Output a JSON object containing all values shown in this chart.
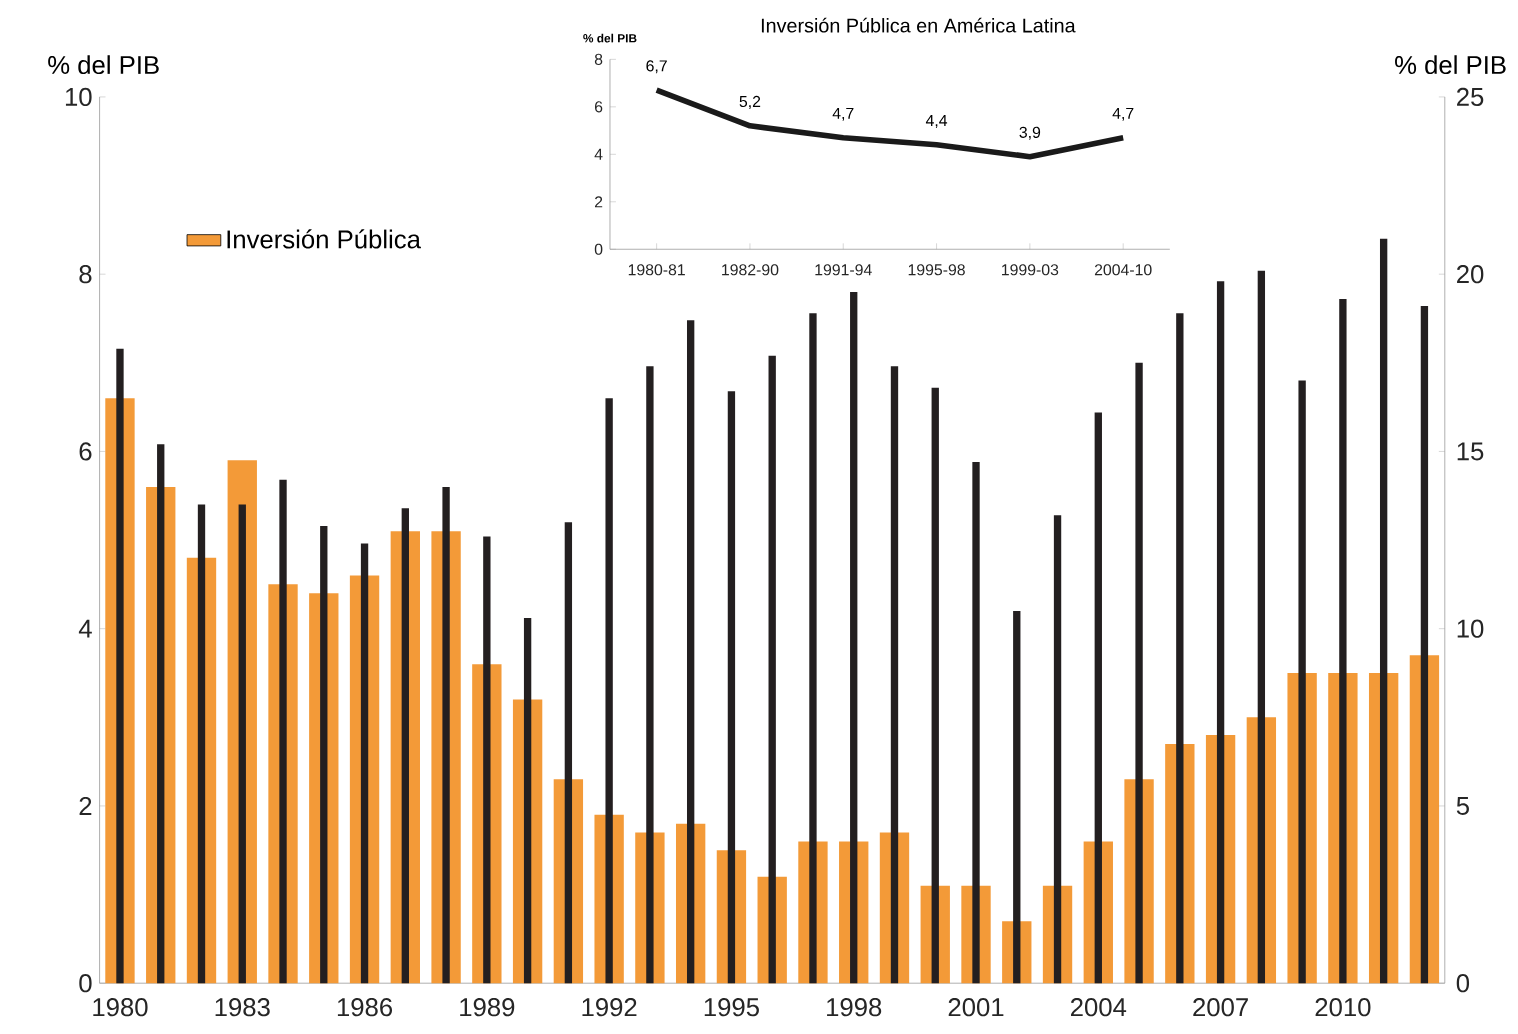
{
  "chart_data": [
    {
      "type": "bar",
      "categories": [
        "1980",
        null,
        null,
        "1983",
        null,
        null,
        "1986",
        null,
        null,
        "1989",
        null,
        null,
        "1992",
        null,
        null,
        "1995",
        null,
        null,
        "1998",
        null,
        null,
        "2001",
        null,
        null,
        "2004",
        null,
        null,
        "2007",
        null,
        null,
        "2010",
        null,
        null
      ],
      "series": [
        {
          "name": "Inversión Pública",
          "color": "#f39a38",
          "values": [
            6.6,
            5.6,
            4.8,
            5.9,
            4.5,
            4.4,
            4.6,
            5.1,
            5.1,
            3.6,
            3.2,
            2.3,
            1.9,
            1.7,
            1.8,
            1.5,
            1.2,
            1.6,
            1.6,
            1.7,
            1.1,
            1.1,
            0.7,
            1.1,
            1.6,
            2.3,
            2.7,
            2.8,
            3.0,
            3.5,
            3.5,
            3.5,
            3.7
          ]
        },
        {
          "color": "#231f20",
          "axis": "y2",
          "values": [
            17.9,
            15.2,
            13.5,
            13.5,
            14.2,
            12.9,
            12.4,
            13.4,
            14.0,
            12.6,
            10.3,
            13.0,
            16.5,
            17.4,
            18.7,
            16.7,
            17.7,
            18.9,
            19.5,
            17.4,
            16.8,
            14.7,
            10.5,
            13.2,
            16.1,
            17.5,
            18.9,
            19.8,
            20.1,
            17.0,
            19.3,
            21.0,
            19.1
          ]
        }
      ],
      "ylabel": "% del PIB",
      "y2label": "% del PIB",
      "ylim": [
        0,
        10
      ],
      "yticks": [
        0,
        2,
        4,
        6,
        8,
        10
      ],
      "y2lim": [
        0,
        25
      ],
      "y2ticks": [
        0,
        5,
        10,
        15,
        20,
        25
      ],
      "legend": "top left",
      "grid": false
    },
    {
      "type": "line",
      "title": "Inversión Pública en América Latina",
      "ylabel": "% del PIB",
      "categories": [
        "1980-81",
        "1982-90",
        "1991-94",
        "1995-98",
        "1999-03",
        "2004-10"
      ],
      "values": [
        6.7,
        5.2,
        4.7,
        4.4,
        3.9,
        4.7
      ],
      "value_labels": [
        "6,7",
        "5,2",
        "4,7",
        "4,4",
        "3,9",
        "4,7"
      ],
      "color": "#1a1a1a",
      "ylim": [
        0,
        8
      ],
      "yticks": [
        0,
        2,
        4,
        6,
        8
      ],
      "grid": false
    }
  ]
}
